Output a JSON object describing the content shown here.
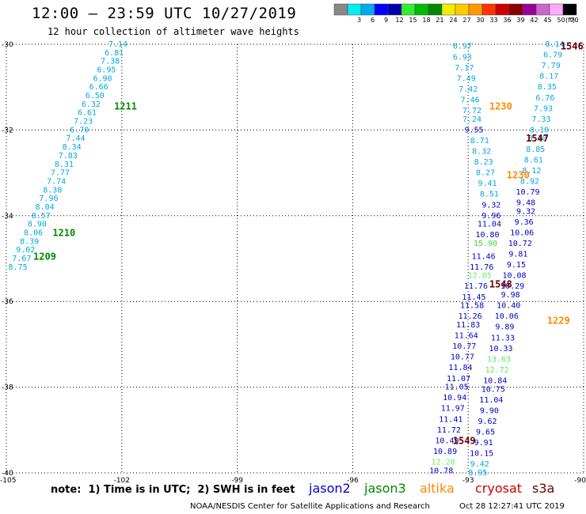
{
  "header": {
    "title": "12:00 — 23:59 UTC 10/27/2019",
    "subtitle": "12 hour collection of altimeter wave heights"
  },
  "colors": {
    "jason2": "#0000cc",
    "jason3": "#008800",
    "altika": "#ff8800",
    "cryosat": "#cc0000",
    "s3a": "#660000",
    "cyan": "#00a8e0",
    "lightgreen": "#55ee55"
  },
  "footer": {
    "note": "note:  1) Time is in UTC;  2) SWH is in feet",
    "credit": "NOAA/NESDIS Center for Satellite Applications and Research",
    "timestamp": "Oct 28 12:27:41 UTC 2019"
  },
  "satellites": [
    {
      "name": "jason2",
      "color": "#0000cc"
    },
    {
      "name": "jason3",
      "color": "#008800"
    },
    {
      "name": "altika",
      "color": "#ff8800"
    },
    {
      "name": "cryosat",
      "color": "#cc0000"
    },
    {
      "name": "s3a",
      "color": "#660000"
    }
  ],
  "chart_data": {
    "type": "scatter",
    "title": "12:00 — 23:59 UTC 10/27/2019",
    "xlim": [
      -105,
      -90
    ],
    "ylim": [
      -40,
      -30
    ],
    "xticks": [
      -105,
      -102,
      -99,
      -96,
      -93,
      -90
    ],
    "yticks": [
      -30,
      -32,
      -34,
      -36,
      -38,
      -40
    ],
    "grid": true,
    "legend": {
      "placement": "top-right",
      "unit": "(ft)",
      "bins": [
        {
          "label": "",
          "color": "#888888"
        },
        {
          "label": "3",
          "color": "#00eeee"
        },
        {
          "label": "6",
          "color": "#00aaee"
        },
        {
          "label": "9",
          "color": "#0000ff"
        },
        {
          "label": "12",
          "color": "#0000aa"
        },
        {
          "label": "15",
          "color": "#33ee33"
        },
        {
          "label": "18",
          "color": "#00bb00"
        },
        {
          "label": "21",
          "color": "#008800"
        },
        {
          "label": "24",
          "color": "#eeee00"
        },
        {
          "label": "27",
          "color": "#ffcc00"
        },
        {
          "label": "30",
          "color": "#ff9900"
        },
        {
          "label": "33",
          "color": "#ff3300"
        },
        {
          "label": "36",
          "color": "#cc0000"
        },
        {
          "label": "39",
          "color": "#880000"
        },
        {
          "label": "42",
          "color": "#990099"
        },
        {
          "label": "45",
          "color": "#cc66cc"
        },
        {
          "label": "50",
          "color": "#ffaaff"
        },
        {
          "label": "70",
          "color": "#000000"
        }
      ]
    },
    "time_labels": [
      {
        "text": "1211",
        "lon": -102.2,
        "lat": -31.45,
        "color": "#008800"
      },
      {
        "text": "1210",
        "lon": -103.8,
        "lat": -34.4,
        "color": "#008800"
      },
      {
        "text": "1209",
        "lon": -104.3,
        "lat": -34.95,
        "color": "#008800"
      },
      {
        "text": "1546",
        "lon": -90.6,
        "lat": -30.05,
        "color": "#660000"
      },
      {
        "text": "1230",
        "lon": -92.45,
        "lat": -31.45,
        "color": "#ff8800"
      },
      {
        "text": "1547",
        "lon": -91.5,
        "lat": -32.2,
        "color": "#660000"
      },
      {
        "text": "1230",
        "lon": -92.0,
        "lat": -33.05,
        "color": "#ff8800"
      },
      {
        "text": "1548",
        "lon": -92.45,
        "lat": -35.6,
        "color": "#660000"
      },
      {
        "text": "1229",
        "lon": -90.95,
        "lat": -36.45,
        "color": "#ff8800"
      },
      {
        "text": "1549",
        "lon": -93.4,
        "lat": -39.25,
        "color": "#660000"
      }
    ],
    "series": [
      {
        "color": "#00a8e0",
        "points": [
          {
            "lon": -102.1,
            "lat": -30.0,
            "v": "7.14"
          },
          {
            "lon": -102.2,
            "lat": -30.2,
            "v": "6.81"
          },
          {
            "lon": -102.3,
            "lat": -30.4,
            "v": "7.38"
          },
          {
            "lon": -102.4,
            "lat": -30.6,
            "v": "6.95"
          },
          {
            "lon": -102.5,
            "lat": -30.8,
            "v": "6.90"
          },
          {
            "lon": -102.6,
            "lat": -31.0,
            "v": "6.66"
          },
          {
            "lon": -102.7,
            "lat": -31.2,
            "v": "6.50"
          },
          {
            "lon": -102.8,
            "lat": -31.4,
            "v": "6.32"
          },
          {
            "lon": -102.9,
            "lat": -31.6,
            "v": "6.61"
          },
          {
            "lon": -103.0,
            "lat": -31.8,
            "v": "7.23"
          },
          {
            "lon": -103.1,
            "lat": -32.0,
            "v": "6.70"
          },
          {
            "lon": -103.2,
            "lat": -32.2,
            "v": "7.44"
          },
          {
            "lon": -103.3,
            "lat": -32.4,
            "v": "8.34"
          },
          {
            "lon": -103.4,
            "lat": -32.6,
            "v": "7.83"
          },
          {
            "lon": -103.5,
            "lat": -32.8,
            "v": "8.31"
          },
          {
            "lon": -103.6,
            "lat": -33.0,
            "v": "7.77"
          },
          {
            "lon": -103.7,
            "lat": -33.2,
            "v": "7.74"
          },
          {
            "lon": -103.8,
            "lat": -33.4,
            "v": "8.38"
          },
          {
            "lon": -103.9,
            "lat": -33.6,
            "v": "7.96"
          },
          {
            "lon": -104.0,
            "lat": -33.8,
            "v": "8.04"
          },
          {
            "lon": -104.1,
            "lat": -34.0,
            "v": "8.57"
          },
          {
            "lon": -104.2,
            "lat": -34.2,
            "v": "8.90"
          },
          {
            "lon": -104.3,
            "lat": -34.4,
            "v": "8.06"
          },
          {
            "lon": -104.4,
            "lat": -34.6,
            "v": "8.39"
          },
          {
            "lon": -104.5,
            "lat": -34.8,
            "v": "9.02"
          },
          {
            "lon": -104.6,
            "lat": -35.0,
            "v": "7.67"
          },
          {
            "lon": -104.7,
            "lat": -35.2,
            "v": "8.75"
          }
        ]
      },
      {
        "color": "#00a8e0",
        "points": [
          {
            "lon": -93.15,
            "lat": -30.05,
            "v": "6.97"
          },
          {
            "lon": -93.15,
            "lat": -30.3,
            "v": "6.93"
          },
          {
            "lon": -93.1,
            "lat": -30.55,
            "v": "7.17"
          },
          {
            "lon": -93.05,
            "lat": -30.8,
            "v": "7.49"
          },
          {
            "lon": -93.0,
            "lat": -31.05,
            "v": "7.42"
          },
          {
            "lon": -92.95,
            "lat": -31.3,
            "v": "7.46"
          },
          {
            "lon": -92.9,
            "lat": -31.55,
            "v": "7.72"
          },
          {
            "lon": -92.9,
            "lat": -31.75,
            "v": "7.24"
          }
        ]
      },
      {
        "color": "#0000cc",
        "points": [
          {
            "lon": -92.85,
            "lat": -32.0,
            "v": "9.55"
          }
        ]
      },
      {
        "color": "#00a8e0",
        "points": [
          {
            "lon": -92.7,
            "lat": -32.25,
            "v": "8.71"
          },
          {
            "lon": -92.65,
            "lat": -32.5,
            "v": "8.32"
          },
          {
            "lon": -92.6,
            "lat": -32.75,
            "v": "8.23"
          },
          {
            "lon": -92.55,
            "lat": -33.0,
            "v": "8.27"
          },
          {
            "lon": -92.5,
            "lat": -33.25,
            "v": "9.41"
          },
          {
            "lon": -92.45,
            "lat": -33.5,
            "v": "8.51"
          }
        ]
      },
      {
        "color": "#0000cc",
        "points": [
          {
            "lon": -92.4,
            "lat": -33.75,
            "v": "9.32"
          },
          {
            "lon": -92.4,
            "lat": -34.0,
            "v": "9.96"
          },
          {
            "lon": -92.45,
            "lat": -34.2,
            "v": "11.04"
          },
          {
            "lon": -92.5,
            "lat": -34.45,
            "v": "10.80"
          }
        ]
      },
      {
        "color": "#33dd33",
        "points": [
          {
            "lon": -92.55,
            "lat": -34.65,
            "v": "15.90"
          }
        ]
      },
      {
        "color": "#0000cc",
        "points": [
          {
            "lon": -92.6,
            "lat": -34.95,
            "v": "11.46"
          },
          {
            "lon": -92.65,
            "lat": -35.2,
            "v": "11.76"
          }
        ]
      },
      {
        "color": "#66ee66",
        "points": [
          {
            "lon": -92.7,
            "lat": -35.4,
            "v": "12.05"
          }
        ]
      },
      {
        "color": "#0000cc",
        "points": [
          {
            "lon": -92.8,
            "lat": -35.65,
            "v": "11.76"
          },
          {
            "lon": -92.85,
            "lat": -35.9,
            "v": "11.45"
          },
          {
            "lon": -92.9,
            "lat": -36.1,
            "v": "11.58"
          },
          {
            "lon": -92.95,
            "lat": -36.35,
            "v": "11.26"
          },
          {
            "lon": -93.0,
            "lat": -36.55,
            "v": "11.83"
          },
          {
            "lon": -93.05,
            "lat": -36.8,
            "v": "11.64"
          },
          {
            "lon": -93.1,
            "lat": -37.05,
            "v": "10.77"
          },
          {
            "lon": -93.15,
            "lat": -37.3,
            "v": "10.77"
          },
          {
            "lon": -93.2,
            "lat": -37.55,
            "v": "11.84"
          },
          {
            "lon": -93.25,
            "lat": -37.8,
            "v": "11.07"
          },
          {
            "lon": -93.3,
            "lat": -38.0,
            "v": "11.05"
          },
          {
            "lon": -93.35,
            "lat": -38.25,
            "v": "10.94"
          },
          {
            "lon": -93.4,
            "lat": -38.5,
            "v": "11.97"
          },
          {
            "lon": -93.45,
            "lat": -38.75,
            "v": "11.41"
          },
          {
            "lon": -93.5,
            "lat": -39.0,
            "v": "11.72"
          },
          {
            "lon": -93.55,
            "lat": -39.25,
            "v": "10.49"
          },
          {
            "lon": -93.6,
            "lat": -39.5,
            "v": "10.89"
          }
        ]
      },
      {
        "color": "#66ee66",
        "points": [
          {
            "lon": -93.65,
            "lat": -39.75,
            "v": "12.28"
          }
        ]
      },
      {
        "color": "#0000cc",
        "points": [
          {
            "lon": -93.7,
            "lat": -39.95,
            "v": "10.78"
          }
        ]
      },
      {
        "color": "#00a8e0",
        "points": [
          {
            "lon": -90.75,
            "lat": -30.0,
            "v": "8.14"
          },
          {
            "lon": -90.8,
            "lat": -30.25,
            "v": "6.79"
          },
          {
            "lon": -90.85,
            "lat": -30.5,
            "v": "7.79"
          },
          {
            "lon": -90.9,
            "lat": -30.75,
            "v": "8.17"
          },
          {
            "lon": -90.95,
            "lat": -31.0,
            "v": "8.35"
          },
          {
            "lon": -91.0,
            "lat": -31.25,
            "v": "6.76"
          },
          {
            "lon": -91.05,
            "lat": -31.5,
            "v": "7.93"
          },
          {
            "lon": -91.1,
            "lat": -31.75,
            "v": "7.33"
          },
          {
            "lon": -91.15,
            "lat": -32.0,
            "v": "8.10"
          },
          {
            "lon": -91.2,
            "lat": -32.2,
            "v": "8.10"
          },
          {
            "lon": -91.25,
            "lat": -32.45,
            "v": "8.85"
          },
          {
            "lon": -91.3,
            "lat": -32.7,
            "v": "8.61"
          },
          {
            "lon": -91.35,
            "lat": -32.95,
            "v": "8.12"
          },
          {
            "lon": -91.4,
            "lat": -33.2,
            "v": "8.92"
          }
        ]
      },
      {
        "color": "#0000cc",
        "points": [
          {
            "lon": -91.45,
            "lat": -33.45,
            "v": "10.79"
          },
          {
            "lon": -91.5,
            "lat": -33.7,
            "v": "9.48"
          },
          {
            "lon": -91.5,
            "lat": -33.9,
            "v": "9.32"
          },
          {
            "lon": -91.55,
            "lat": -34.15,
            "v": "9.36"
          },
          {
            "lon": -91.6,
            "lat": -34.4,
            "v": "10.06"
          },
          {
            "lon": -91.65,
            "lat": -34.65,
            "v": "10.72"
          },
          {
            "lon": -91.7,
            "lat": -34.9,
            "v": "9.81"
          },
          {
            "lon": -91.75,
            "lat": -35.15,
            "v": "9.15"
          },
          {
            "lon": -91.8,
            "lat": -35.4,
            "v": "10.08"
          },
          {
            "lon": -91.85,
            "lat": -35.65,
            "v": "10.29"
          },
          {
            "lon": -91.9,
            "lat": -35.85,
            "v": "9.98"
          },
          {
            "lon": -91.95,
            "lat": -36.1,
            "v": "10.40"
          },
          {
            "lon": -92.0,
            "lat": -36.35,
            "v": "10.06"
          },
          {
            "lon": -92.05,
            "lat": -36.6,
            "v": "9.89"
          },
          {
            "lon": -92.1,
            "lat": -36.85,
            "v": "11.33"
          },
          {
            "lon": -92.15,
            "lat": -37.1,
            "v": "10.33"
          }
        ]
      },
      {
        "color": "#55ee55",
        "points": [
          {
            "lon": -92.2,
            "lat": -37.35,
            "v": "13.63"
          },
          {
            "lon": -92.25,
            "lat": -37.6,
            "v": "12.72"
          }
        ]
      },
      {
        "color": "#0000cc",
        "points": [
          {
            "lon": -92.3,
            "lat": -37.85,
            "v": "10.84"
          },
          {
            "lon": -92.35,
            "lat": -38.05,
            "v": "10.75"
          },
          {
            "lon": -92.4,
            "lat": -38.3,
            "v": "11.04"
          },
          {
            "lon": -92.45,
            "lat": -38.55,
            "v": "9.90"
          },
          {
            "lon": -92.5,
            "lat": -38.8,
            "v": "9.62"
          },
          {
            "lon": -92.55,
            "lat": -39.05,
            "v": "9.65"
          },
          {
            "lon": -92.6,
            "lat": -39.3,
            "v": "9.91"
          },
          {
            "lon": -92.65,
            "lat": -39.55,
            "v": "10.15"
          }
        ]
      },
      {
        "color": "#00a8e0",
        "points": [
          {
            "lon": -92.7,
            "lat": -39.8,
            "v": "9.42"
          },
          {
            "lon": -92.75,
            "lat": -40.0,
            "v": "8.95"
          }
        ]
      }
    ]
  }
}
